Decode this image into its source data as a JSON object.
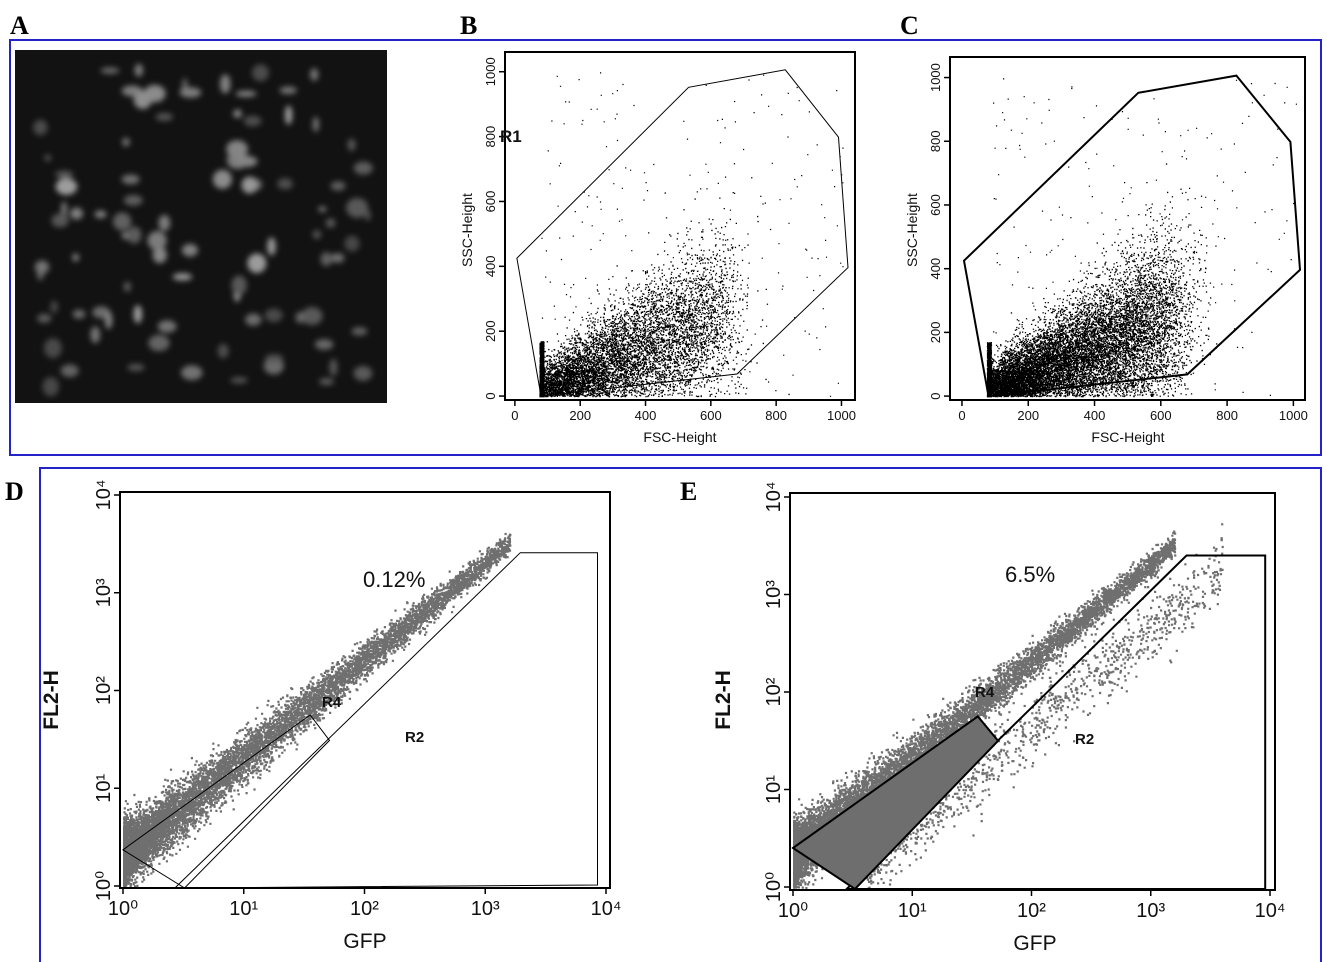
{
  "image_panel": {
    "label": "A"
  },
  "chart_data": [
    {
      "type": "scatter",
      "label": "B",
      "x_label": "FSC-Height",
      "y_label": "SSC-Height",
      "log_scale": false,
      "xlim": [
        -15,
        1020
      ],
      "ylim": [
        -6,
        1030
      ],
      "xticks": [
        0,
        200,
        400,
        600,
        800,
        1000
      ],
      "yticks": [
        0,
        200,
        400,
        600,
        800,
        1000
      ],
      "annotations": [
        "R1"
      ]
    },
    {
      "type": "scatter",
      "label": "C",
      "x_label": "FSC-Height",
      "y_label": "SSC-Height",
      "log_scale": false,
      "xlim": [
        -15,
        1020
      ],
      "ylim": [
        -6,
        1030
      ],
      "xticks": [
        0,
        200,
        400,
        600,
        800,
        1000
      ],
      "yticks": [
        0,
        200,
        400,
        600,
        800,
        1000
      ],
      "annotations": []
    },
    {
      "type": "scatter",
      "label": "D",
      "x_label": "GFP",
      "y_label": "FL2-H",
      "log_scale": true,
      "xlim": [
        1,
        10000
      ],
      "ylim": [
        1,
        10000
      ],
      "xticks": [
        {
          "value": 1,
          "label": "10⁰"
        },
        {
          "value": 10,
          "label": "10¹"
        },
        {
          "value": 100,
          "label": "10²"
        },
        {
          "value": 1000,
          "label": "10³"
        },
        {
          "value": 10000,
          "label": "10⁴"
        }
      ],
      "yticks": [
        {
          "value": 1,
          "label": "10⁰"
        },
        {
          "value": 10,
          "label": "10¹"
        },
        {
          "value": 100,
          "label": "10²"
        },
        {
          "value": 1000,
          "label": "10³"
        },
        {
          "value": 10000,
          "label": "10⁴"
        }
      ],
      "annotations": [
        "0.12%",
        "R4",
        "R2"
      ]
    },
    {
      "type": "scatter",
      "label": "E",
      "x_label": "GFP",
      "y_label": "FL2-H",
      "log_scale": true,
      "xlim": [
        1,
        10000
      ],
      "ylim": [
        1,
        10000
      ],
      "xticks": [
        {
          "value": 1,
          "label": "10⁰"
        },
        {
          "value": 10,
          "label": "10¹"
        },
        {
          "value": 100,
          "label": "10²"
        },
        {
          "value": 1000,
          "label": "10³"
        },
        {
          "value": 10000,
          "label": "10⁴"
        }
      ],
      "yticks": [
        {
          "value": 1,
          "label": "10⁰"
        },
        {
          "value": 10,
          "label": "10¹"
        },
        {
          "value": 100,
          "label": "10²"
        },
        {
          "value": 1000,
          "label": "10³"
        },
        {
          "value": 10000,
          "label": "10⁴"
        }
      ],
      "annotations": [
        "6.5%",
        "R4",
        "R2"
      ]
    }
  ]
}
